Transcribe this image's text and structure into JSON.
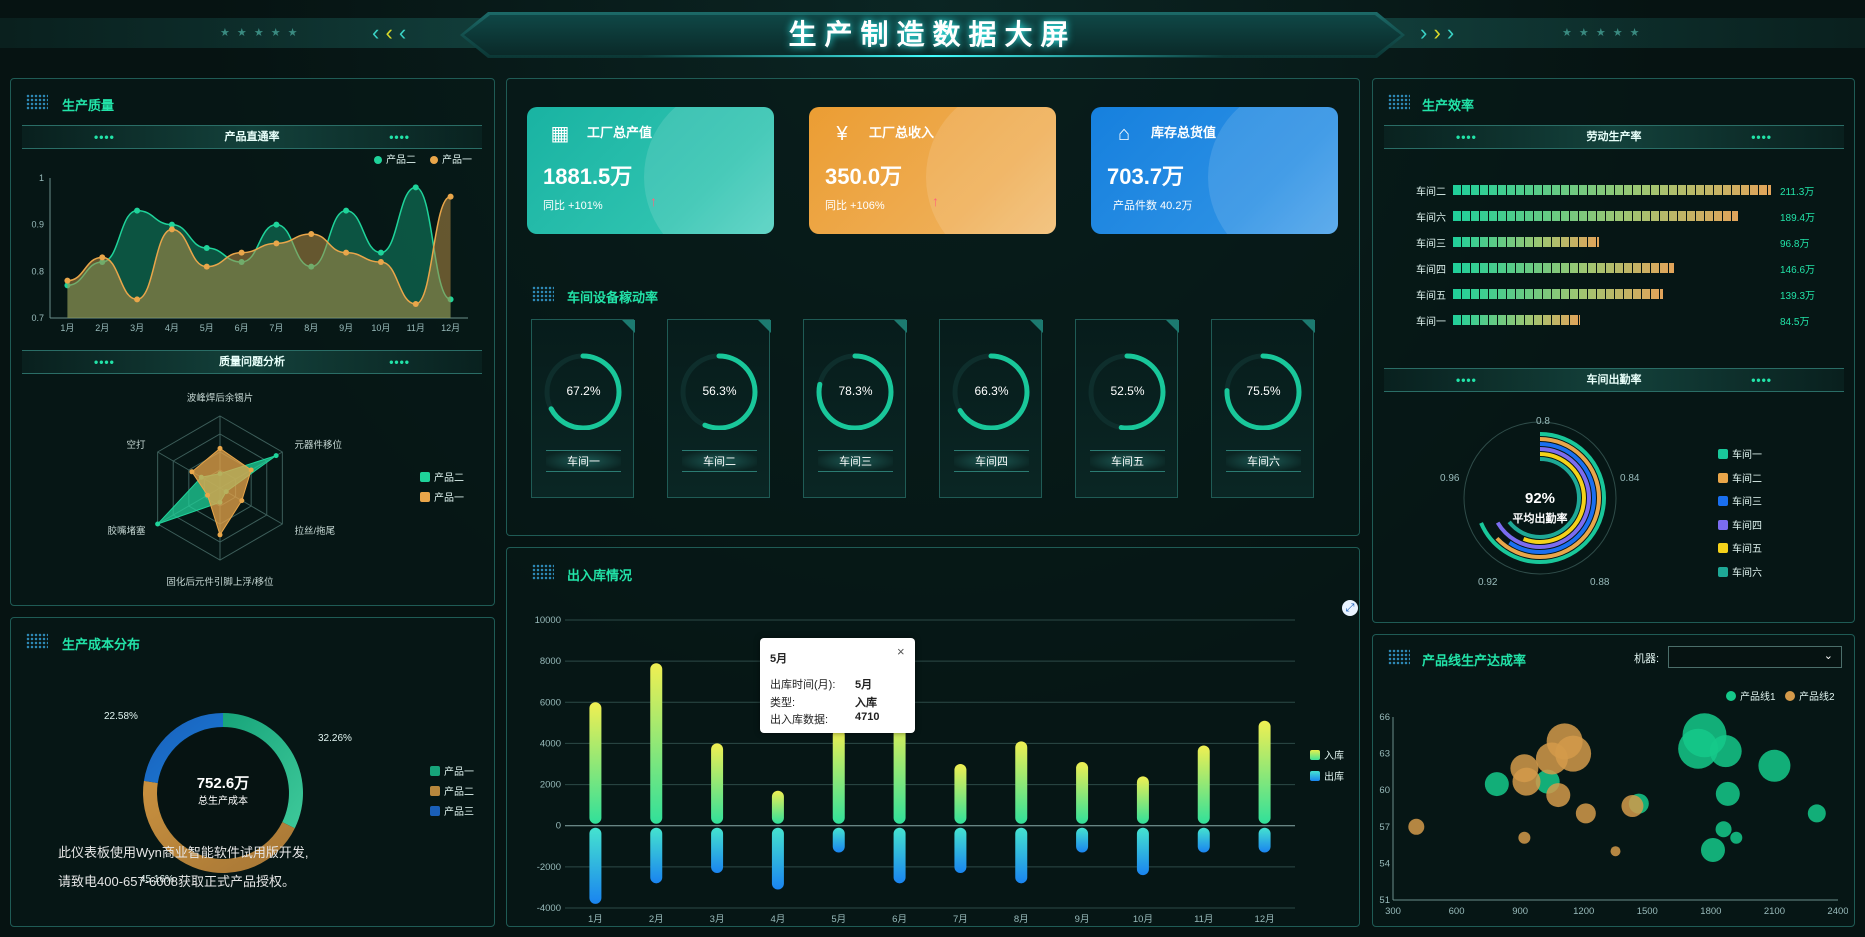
{
  "header": {
    "title": "生产制造数据大屏",
    "star_left": "★ ★ ★ ★ ★",
    "star_right": "★ ★ ★ ★ ★"
  },
  "quality": {
    "title": "生产质量",
    "pass_rate": {
      "title": "产品直通率",
      "legend": [
        "产品二",
        "产品一"
      ],
      "yticks": [
        "1",
        "0.9",
        "0.8",
        "0.7"
      ],
      "months": [
        "1月",
        "2月",
        "3月",
        "4月",
        "5月",
        "6月",
        "7月",
        "8月",
        "9月",
        "10月",
        "11月",
        "12月"
      ]
    },
    "issues": {
      "title": "质量问题分析",
      "legend": [
        "产品二",
        "产品一"
      ],
      "axes": [
        "波峰焊后余锡片",
        "元器件移位",
        "拉丝/拖尾",
        "固化后元件引脚上浮/移位",
        "胶嘴堵塞",
        "空打"
      ]
    }
  },
  "cost": {
    "title": "生产成本分布",
    "value": "752.6万",
    "label": "总生产成本",
    "pct_left": "22.58%",
    "pct_right": "32.26%",
    "pct_bottom": "45.16%",
    "legend": [
      "产品一",
      "产品二",
      "产品三"
    ]
  },
  "kpis": [
    {
      "title": "工厂总产值",
      "value": "1881.5万",
      "sub": "同比 +101%",
      "color": "#19b3a2",
      "icon": "factory-icon"
    },
    {
      "title": "工厂总收入",
      "value": "350.0万",
      "sub": "同比 +106%",
      "color": "#eaa03b",
      "icon": "money-bag-icon"
    },
    {
      "title": "库存总货值",
      "value": "703.7万",
      "sub": "产品件数 40.2万",
      "color": "#1a87e0",
      "icon": "warehouse-icon"
    }
  ],
  "equipment": {
    "title": "车间设备稼动率",
    "gauges": [
      {
        "name": "车间一",
        "value": "67.2%",
        "pct": 67.2
      },
      {
        "name": "车间二",
        "value": "56.3%",
        "pct": 56.3
      },
      {
        "name": "车间三",
        "value": "78.3%",
        "pct": 78.3
      },
      {
        "name": "车间四",
        "value": "66.3%",
        "pct": 66.3
      },
      {
        "name": "车间五",
        "value": "52.5%",
        "pct": 52.5
      },
      {
        "name": "车间六",
        "value": "75.5%",
        "pct": 75.5
      }
    ]
  },
  "inout": {
    "title": "出入库情况",
    "legend": [
      "入库",
      "出库"
    ],
    "tooltip": {
      "title": "5月",
      "rows": [
        [
          "出库时间(月):",
          "5月"
        ],
        [
          "类型:",
          "入库"
        ],
        [
          "出入库数据:",
          "4710"
        ]
      ],
      "close": "×"
    }
  },
  "efficiency": {
    "title": "生产效率",
    "labor": {
      "title": "劳动生产率",
      "rows": [
        {
          "name": "车间二",
          "value": "211.3万",
          "v": 211.3
        },
        {
          "name": "车间六",
          "value": "189.4万",
          "v": 189.4
        },
        {
          "name": "车间三",
          "value": "96.8万",
          "v": 96.8
        },
        {
          "name": "车间四",
          "value": "146.6万",
          "v": 146.6
        },
        {
          "name": "车间五",
          "value": "139.3万",
          "v": 139.3
        },
        {
          "name": "车间一",
          "value": "84.5万",
          "v": 84.5
        }
      ]
    },
    "attendance": {
      "title": "车间出勤率",
      "center_value": "92%",
      "center_label": "平均出勤率",
      "ticks": [
        "0.8",
        "0.84",
        "0.88",
        "0.92",
        "0.96"
      ],
      "legend": [
        "车间一",
        "车间二",
        "车间三",
        "车间四",
        "车间五",
        "车间六"
      ]
    }
  },
  "lines": {
    "title": "产品线生产达成率",
    "machine_label": "机器:",
    "select_value": "",
    "legend": [
      "产品线1",
      "产品线2"
    ]
  },
  "watermark": {
    "line1": "此仪表板使用Wyn商业智能软件试用版开发,",
    "line2": "请致电400-657-6008获取正式产品授权。"
  },
  "chart_data": [
    {
      "type": "line",
      "title": "产品直通率",
      "categories": [
        "1月",
        "2月",
        "3月",
        "4月",
        "5月",
        "6月",
        "7月",
        "8月",
        "9月",
        "10月",
        "11月",
        "12月"
      ],
      "ylim": [
        0.7,
        1
      ],
      "series": [
        {
          "name": "产品二",
          "values": [
            0.77,
            0.82,
            0.93,
            0.9,
            0.85,
            0.82,
            0.9,
            0.81,
            0.93,
            0.84,
            0.98,
            0.74
          ]
        },
        {
          "name": "产品一",
          "values": [
            0.78,
            0.83,
            0.74,
            0.89,
            0.81,
            0.84,
            0.86,
            0.88,
            0.84,
            0.82,
            0.73,
            0.96
          ]
        }
      ]
    },
    {
      "type": "radar",
      "title": "质量问题分析",
      "categories": [
        "波峰焊后余锡片",
        "元器件移位",
        "拉丝/拖尾",
        "固化后元件引脚上浮/移位",
        "胶嘴堵塞",
        "空打"
      ],
      "series": [
        {
          "name": "产品二",
          "values": [
            0.2,
            0.9,
            0.1,
            0.2,
            1.0,
            0.3
          ]
        },
        {
          "name": "产品一",
          "values": [
            0.55,
            0.5,
            0.35,
            0.65,
            0.2,
            0.45
          ]
        }
      ]
    },
    {
      "type": "pie",
      "title": "生产成本分布",
      "categories": [
        "产品一",
        "产品二",
        "产品三"
      ],
      "values": [
        32.26,
        45.16,
        22.58
      ]
    },
    {
      "type": "bar",
      "title": "出入库情况",
      "categories": [
        "1月",
        "2月",
        "3月",
        "4月",
        "5月",
        "6月",
        "7月",
        "8月",
        "9月",
        "10月",
        "11月",
        "12月"
      ],
      "ylim": [
        -4000,
        10000
      ],
      "yticks": [
        10000,
        8000,
        6000,
        4000,
        2000,
        0,
        -2000,
        -4000
      ],
      "series": [
        {
          "name": "入库",
          "values": [
            6000,
            7900,
            4000,
            1700,
            4710,
            5400,
            3000,
            4100,
            3100,
            2400,
            3900,
            5100
          ]
        },
        {
          "name": "出库",
          "values": [
            -3800,
            -2800,
            -2300,
            -3100,
            -1300,
            -2800,
            -2300,
            -2800,
            -1300,
            -2400,
            -1300,
            -1300
          ]
        }
      ]
    },
    {
      "type": "scatter",
      "title": "产品线生产达成率",
      "xlim": [
        300,
        2400
      ],
      "ylim": [
        51,
        66
      ],
      "xticks": [
        300,
        600,
        900,
        1200,
        1500,
        1800,
        2100,
        2400
      ],
      "yticks": [
        51,
        54,
        57,
        60,
        63,
        66
      ],
      "series": [
        {
          "name": "产品线1",
          "points": [
            [
              1770,
              64.5,
              22
            ],
            [
              1740,
              63.4,
              20
            ],
            [
              1870,
              63.2,
              16
            ],
            [
              2100,
              62.0,
              16
            ],
            [
              1880,
              59.7,
              12
            ],
            [
              2300,
              58.1,
              9
            ],
            [
              1860,
              56.8,
              8
            ],
            [
              1920,
              56.1,
              6
            ],
            [
              1810,
              55.1,
              12
            ],
            [
              1030,
              60.7,
              12
            ],
            [
              790,
              60.5,
              12
            ],
            [
              1460,
              58.9,
              10
            ]
          ]
        },
        {
          "name": "产品线2",
          "points": [
            [
              1110,
              64.0,
              18
            ],
            [
              1150,
              63.0,
              18
            ],
            [
              1050,
              62.6,
              16
            ],
            [
              920,
              61.8,
              14
            ],
            [
              930,
              60.7,
              14
            ],
            [
              1430,
              58.7,
              11
            ],
            [
              1080,
              59.6,
              12
            ],
            [
              1210,
              58.1,
              10
            ],
            [
              410,
              57.0,
              8
            ],
            [
              920,
              56.1,
              6
            ],
            [
              1350,
              55.0,
              5
            ]
          ]
        }
      ]
    }
  ]
}
